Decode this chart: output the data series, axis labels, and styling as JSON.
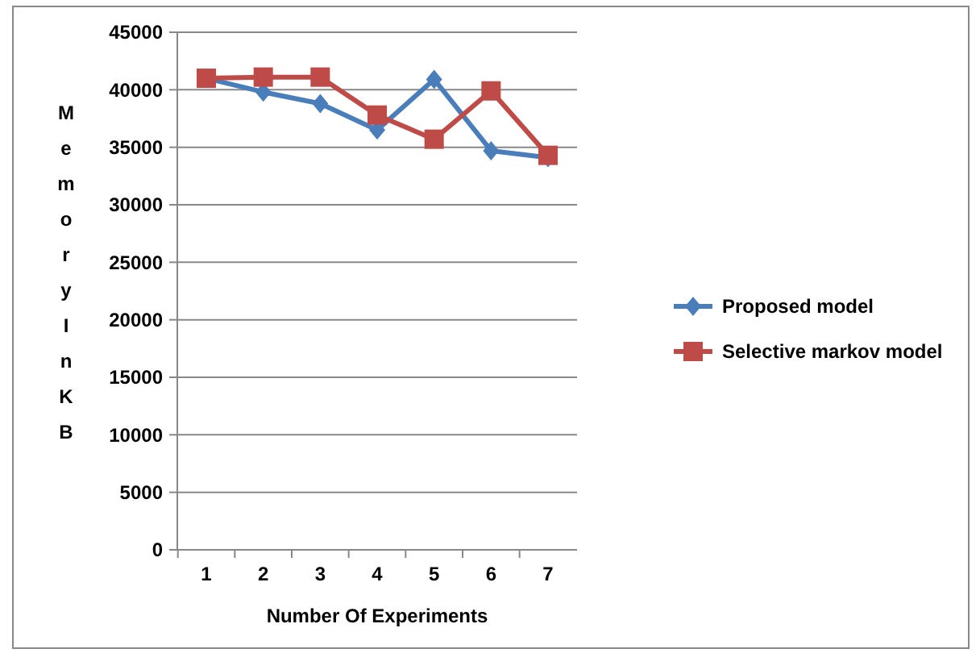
{
  "chart_data": {
    "type": "line",
    "xlabel": "Number Of Experiments",
    "ylabel": "Memory In KB",
    "categories": [
      "1",
      "2",
      "3",
      "4",
      "5",
      "6",
      "7"
    ],
    "series": [
      {
        "name": "Proposed model",
        "color": "#4a7ebb",
        "values": [
          41000,
          39800,
          38800,
          36500,
          40900,
          34700,
          34100
        ],
        "marker": "diamond"
      },
      {
        "name": "Selective markov model",
        "color": "#be4b48",
        "values": [
          41000,
          41100,
          41100,
          37800,
          35700,
          39900,
          34300
        ],
        "marker": "square"
      }
    ],
    "ylim": [
      0,
      45000
    ],
    "yticks": [
      0,
      5000,
      10000,
      15000,
      20000,
      25000,
      30000,
      35000,
      40000,
      45000
    ],
    "grid": "y",
    "legend": "right"
  }
}
